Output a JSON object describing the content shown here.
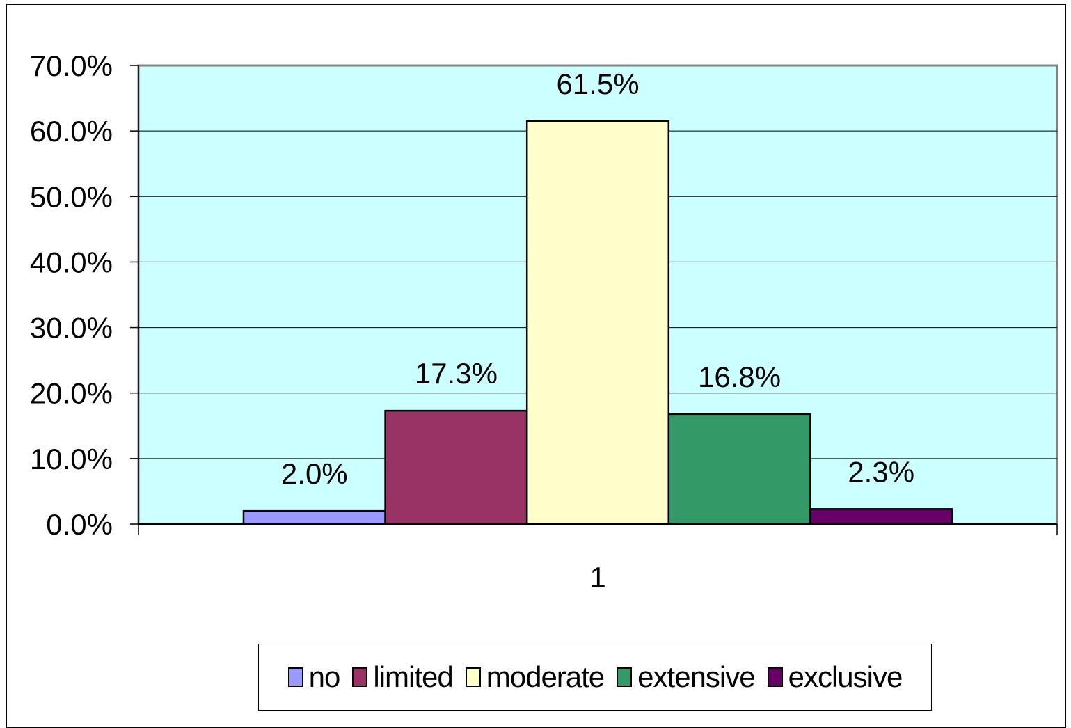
{
  "chart_data": {
    "type": "bar",
    "categories": [
      "1"
    ],
    "series": [
      {
        "name": "no",
        "values": [
          2.0
        ],
        "color": "#9999ff",
        "label": "2.0%"
      },
      {
        "name": "limited",
        "values": [
          17.3
        ],
        "color": "#993366",
        "label": "17.3%"
      },
      {
        "name": "moderate",
        "values": [
          61.5
        ],
        "color": "#ffffcc",
        "label": "61.5%"
      },
      {
        "name": "extensive",
        "values": [
          16.8
        ],
        "color": "#339966",
        "label": "16.8%"
      },
      {
        "name": "exclusive",
        "values": [
          2.3
        ],
        "color": "#660066",
        "label": "2.3%"
      }
    ],
    "ylim": [
      0,
      70
    ],
    "yticks": [
      "0.0%",
      "10.0%",
      "20.0%",
      "30.0%",
      "40.0%",
      "50.0%",
      "60.0%",
      "70.0%"
    ],
    "grid": true,
    "plot_background": "#ccffff",
    "legend_position": "bottom"
  }
}
